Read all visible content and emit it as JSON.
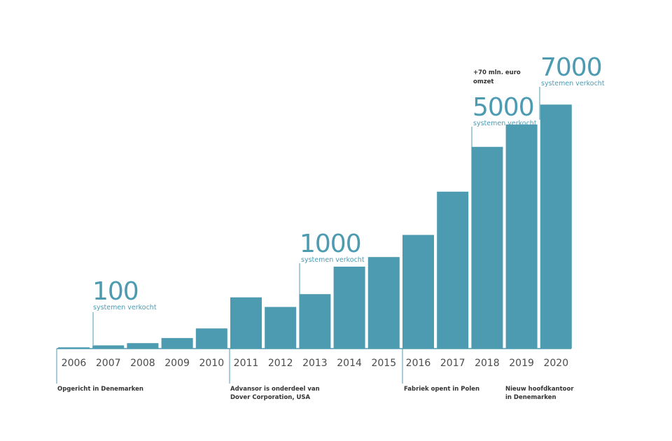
{
  "chart_data": {
    "type": "bar",
    "categories": [
      "2006",
      "2007",
      "2008",
      "2009",
      "2010",
      "2011",
      "2012",
      "2013",
      "2014",
      "2015",
      "2016",
      "2017",
      "2018",
      "2019",
      "2020"
    ],
    "values": [
      40,
      100,
      170,
      330,
      630,
      1600,
      1300,
      1700,
      2560,
      2860,
      3550,
      4900,
      6300,
      7000,
      7620
    ],
    "ylim": [
      0,
      8000
    ],
    "color": "#4d9bb1",
    "milestones": [
      {
        "value": "100",
        "label": "systemen verkocht"
      },
      {
        "value": "1000",
        "label": "systemen verkocht"
      },
      {
        "value": "5000",
        "label": "systemen verkocht",
        "note": [
          "+70 mln. euro",
          "omzet"
        ]
      },
      {
        "value": "7000",
        "label": "systemen verkocht"
      }
    ],
    "annotations": [
      {
        "lines": [
          "Opgericht  in Denemarken"
        ]
      },
      {
        "lines": [
          "Advansor is onderdeel van",
          "Dover Corporation,  USA"
        ]
      },
      {
        "lines": [
          "Fabriek  opent  in Polen"
        ]
      },
      {
        "lines": [
          "Nieuw  hoofdkantoor",
          "in Denemarken"
        ]
      }
    ]
  }
}
